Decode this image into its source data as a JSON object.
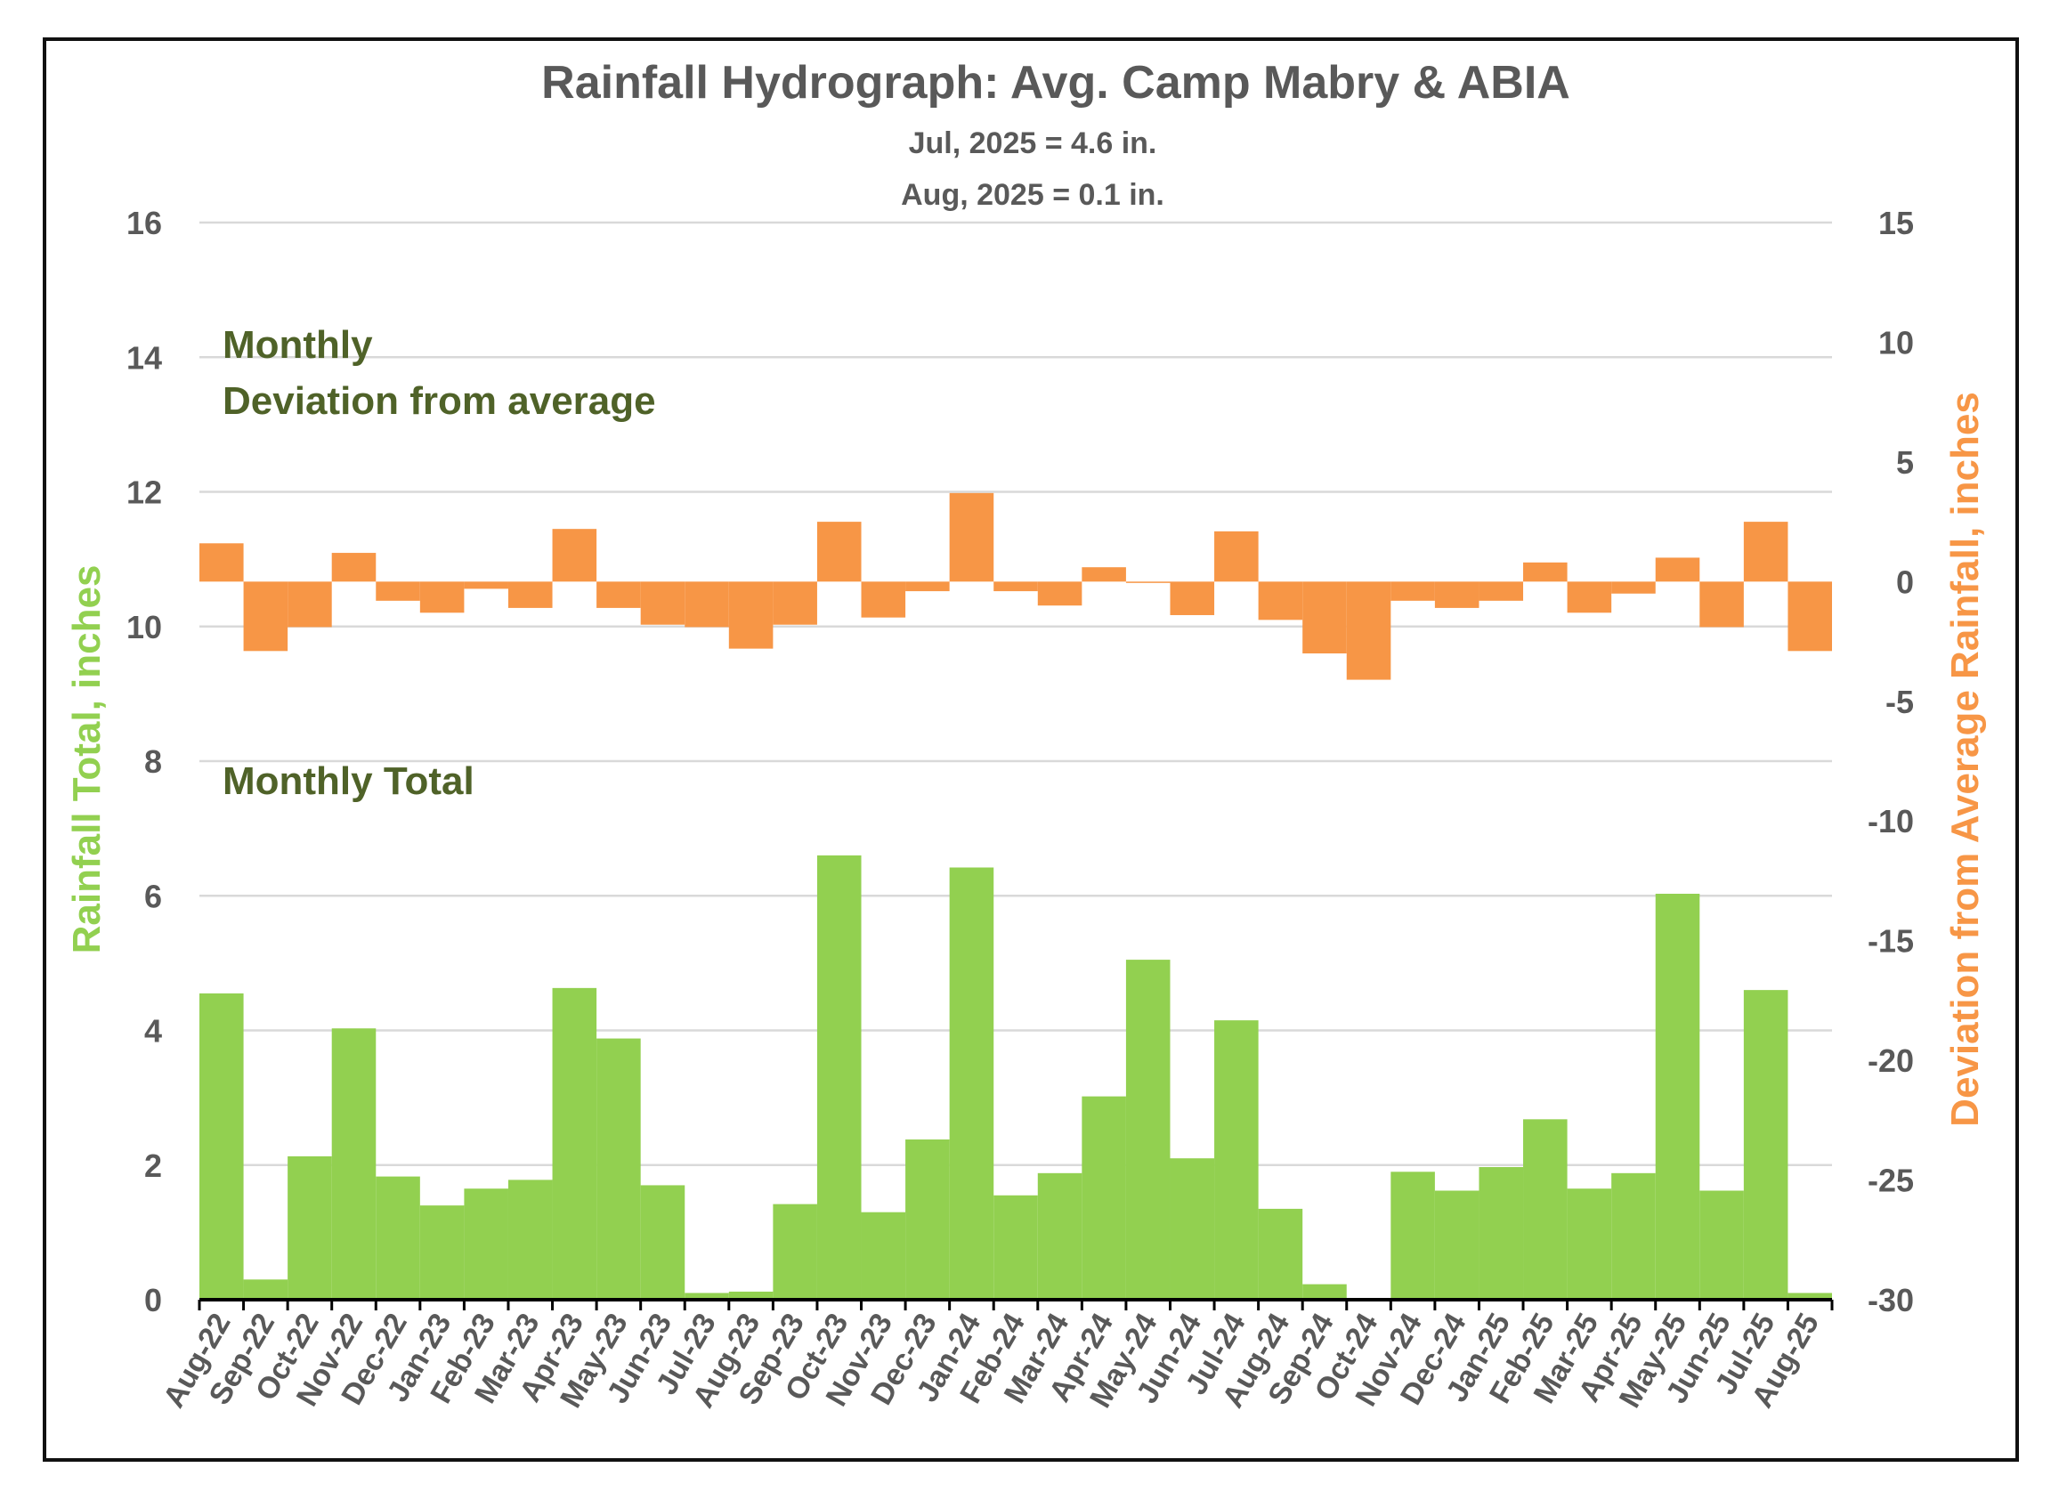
{
  "chart_data": {
    "type": "bar",
    "title": "Rainfall Hydrograph: Avg. Camp Mabry & ABIA",
    "subtitle_lines": [
      "Jul, 2025 = 4.6 in.",
      "Aug, 2025 = 0.1 in."
    ],
    "annotations": {
      "deviation_line1": "Monthly",
      "deviation_line2": "Deviation from average",
      "total": "Monthly Total"
    },
    "ylabel_left": "Rainfall Total, inches",
    "ylabel_right": "Deviation from Average Rainfall, inches",
    "ylim_left": [
      0,
      16
    ],
    "ylim_right": [
      -30,
      15
    ],
    "yticks_left": [
      0,
      2,
      4,
      6,
      8,
      10,
      12,
      14,
      16
    ],
    "yticks_right": [
      -30,
      -25,
      -20,
      -15,
      -10,
      -5,
      0,
      5,
      10,
      15
    ],
    "grid": true,
    "categories": [
      "Aug-22",
      "Sep-22",
      "Oct-22",
      "Nov-22",
      "Dec-22",
      "Jan-23",
      "Feb-23",
      "Mar-23",
      "Apr-23",
      "May-23",
      "Jun-23",
      "Jul-23",
      "Aug-23",
      "Sep-23",
      "Oct-23",
      "Nov-23",
      "Dec-23",
      "Jan-24",
      "Feb-24",
      "Mar-24",
      "Apr-24",
      "May-24",
      "Jun-24",
      "Jul-24",
      "Aug-24",
      "Sep-24",
      "Oct-24",
      "Nov-24",
      "Dec-24",
      "Jan-25",
      "Feb-25",
      "Mar-25",
      "Apr-25",
      "May-25",
      "Jun-25",
      "Jul-25",
      "Aug-25"
    ],
    "series": [
      {
        "name": "Monthly Total",
        "axis": "left",
        "color": "#92d050",
        "values": [
          4.55,
          0.3,
          2.13,
          4.03,
          1.83,
          1.4,
          1.65,
          1.78,
          4.63,
          3.88,
          1.7,
          0.1,
          0.12,
          1.42,
          6.6,
          1.3,
          2.38,
          6.42,
          1.55,
          1.88,
          3.02,
          5.05,
          2.1,
          4.15,
          1.35,
          0.23,
          0.02,
          1.9,
          1.62,
          1.97,
          2.68,
          1.65,
          1.88,
          6.03,
          1.62,
          4.6,
          0.1
        ]
      },
      {
        "name": "Deviation from average",
        "axis": "right",
        "color": "#f79646",
        "values": [
          1.6,
          -2.9,
          -1.9,
          1.2,
          -0.8,
          -1.3,
          -0.3,
          -1.1,
          2.2,
          -1.1,
          -1.8,
          -1.9,
          -2.8,
          -1.8,
          2.5,
          -1.5,
          -0.4,
          3.7,
          -0.4,
          -1.0,
          0.6,
          0.0,
          -1.4,
          2.1,
          -1.6,
          -3.0,
          -4.1,
          -0.8,
          -1.1,
          -0.8,
          0.8,
          -1.3,
          -0.5,
          1.0,
          -1.9,
          2.5,
          -2.9
        ]
      }
    ]
  }
}
